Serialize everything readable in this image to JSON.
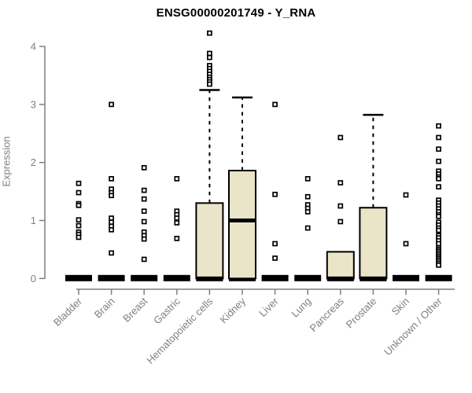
{
  "chart_data": {
    "type": "boxplot",
    "title": "ENSG00000201749 - Y_RNA",
    "ylabel": "Expression",
    "xlabel": "",
    "ylim": [
      0,
      4
    ],
    "yticks": [
      0,
      1,
      2,
      3,
      4
    ],
    "grid": false,
    "legend": "none",
    "colors": {
      "box_fill": "#EAE4C9",
      "box_border": "#000000",
      "median": "#000000",
      "axis": "#7f7f7f",
      "tick_label": "#7f7f7f",
      "title": "#000000",
      "outlier": "#000000",
      "background": "#ffffff"
    },
    "outlier_marker": "open-square",
    "categories": [
      "Bladder",
      "Brain",
      "Breast",
      "Gastric",
      "Hematopoietic cells",
      "Kidney",
      "Liver",
      "Lung",
      "Pancreas",
      "Prostate",
      "Skin",
      "Unknown / Other"
    ],
    "boxes": [
      {
        "category": "Bladder",
        "q1": 0,
        "median": 0,
        "q3": 0,
        "whisker_low": 0,
        "whisker_high": 0,
        "outliers": [
          1.64,
          1.48,
          1.29,
          1.26,
          1.01,
          0.91,
          0.8,
          0.76,
          0.71
        ]
      },
      {
        "category": "Brain",
        "q1": 0,
        "median": 0,
        "q3": 0,
        "whisker_low": 0,
        "whisker_high": 0,
        "outliers": [
          3.0,
          1.72,
          1.54,
          1.48,
          1.43,
          1.04,
          0.97,
          0.9,
          0.84,
          0.44
        ]
      },
      {
        "category": "Breast",
        "q1": 0,
        "median": 0,
        "q3": 0,
        "whisker_low": 0,
        "whisker_high": 0,
        "outliers": [
          1.91,
          1.52,
          1.37,
          1.16,
          0.98,
          0.8,
          0.74,
          0.68,
          0.33
        ]
      },
      {
        "category": "Gastric",
        "q1": 0,
        "median": 0,
        "q3": 0,
        "whisker_low": 0,
        "whisker_high": 0,
        "outliers": [
          1.72,
          1.16,
          1.1,
          1.04,
          0.96,
          0.69
        ]
      },
      {
        "category": "Hematopoietic cells",
        "q1": 0,
        "median": 0,
        "q3": 1.3,
        "whisker_low": 0,
        "whisker_high": 3.25,
        "outliers": [
          4.23,
          3.88,
          3.81,
          3.67,
          3.62,
          3.57,
          3.52,
          3.47,
          3.43,
          3.39,
          3.35
        ]
      },
      {
        "category": "Kidney",
        "q1": 0,
        "median": 1.0,
        "q3": 1.86,
        "whisker_low": 0,
        "whisker_high": 3.12,
        "outliers": []
      },
      {
        "category": "Liver",
        "q1": 0,
        "median": 0,
        "q3": 0,
        "whisker_low": 0,
        "whisker_high": 0,
        "outliers": [
          3.0,
          1.45,
          0.6,
          0.35
        ]
      },
      {
        "category": "Lung",
        "q1": 0,
        "median": 0,
        "q3": 0,
        "whisker_low": 0,
        "whisker_high": 0,
        "outliers": [
          1.72,
          1.41,
          1.27,
          1.21,
          1.15,
          0.87
        ]
      },
      {
        "category": "Pancreas",
        "q1": 0,
        "median": 0,
        "q3": 0.46,
        "whisker_low": 0,
        "whisker_high": 0.46,
        "outliers": [
          2.43,
          1.65,
          1.25,
          0.98
        ]
      },
      {
        "category": "Prostate",
        "q1": 0,
        "median": 0,
        "q3": 1.22,
        "whisker_low": 0,
        "whisker_high": 2.82,
        "outliers": []
      },
      {
        "category": "Skin",
        "q1": 0,
        "median": 0,
        "q3": 0,
        "whisker_low": 0,
        "whisker_high": 0,
        "outliers": [
          1.44,
          0.6
        ]
      },
      {
        "category": "Unknown / Other",
        "q1": 0,
        "median": 0,
        "q3": 0,
        "whisker_low": 0,
        "whisker_high": 0,
        "outliers": [
          2.63,
          2.43,
          2.23,
          2.02,
          1.85,
          1.8,
          1.75,
          1.72,
          1.58,
          1.35,
          1.3,
          1.25,
          1.2,
          1.15,
          1.1,
          1.07,
          0.97,
          0.92,
          0.87,
          0.83,
          0.74,
          0.7,
          0.65,
          0.6,
          0.53,
          0.5,
          0.47,
          0.44,
          0.41,
          0.38,
          0.35,
          0.32,
          0.29,
          0.26,
          0.23
        ]
      }
    ]
  }
}
